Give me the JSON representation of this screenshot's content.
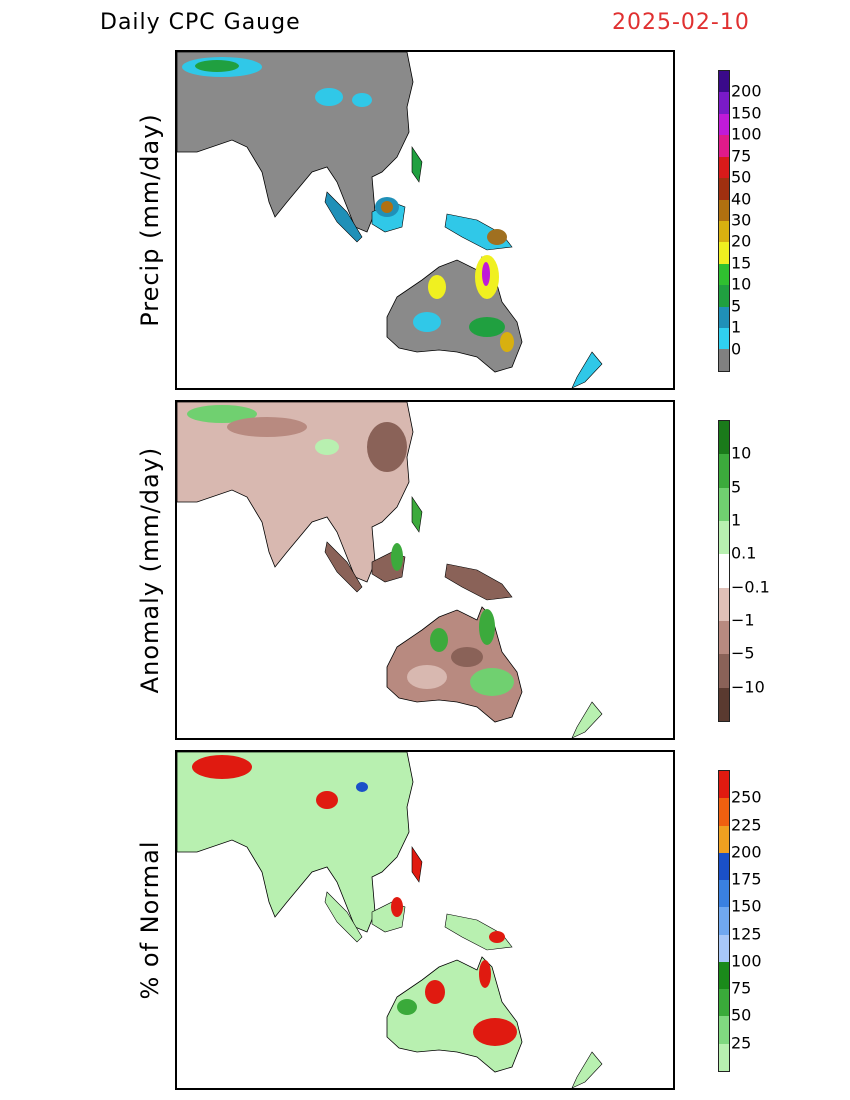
{
  "header": {
    "title": "Daily CPC Gauge",
    "date": "2025-02-10"
  },
  "panels": [
    {
      "id": "precip",
      "ylabel": "Precip (mm/day)",
      "colorbar": {
        "labels": [
          "200",
          "150",
          "100",
          "75",
          "50",
          "40",
          "30",
          "20",
          "15",
          "10",
          "5",
          "1",
          "0"
        ],
        "colors": [
          "#3a0a8a",
          "#7a1ac8",
          "#c01ad8",
          "#e01a8a",
          "#d81a1a",
          "#a03010",
          "#b07010",
          "#d8b010",
          "#f0f020",
          "#30c030",
          "#20a040",
          "#2090b8",
          "#30d0f0",
          "#808080"
        ]
      }
    },
    {
      "id": "anomaly",
      "ylabel": "Anomaly (mm/day)",
      "colorbar": {
        "labels": [
          "10",
          "5",
          "1",
          "0.1",
          "−0.1",
          "−1",
          "−5",
          "−10"
        ],
        "colors": [
          "#1a7a1a",
          "#3caa3c",
          "#70d070",
          "#b8f0b0",
          "#ffffff",
          "#e0c0b8",
          "#b88a80",
          "#8a6258",
          "#5a3a30"
        ]
      }
    },
    {
      "id": "percent",
      "ylabel": "% of Normal",
      "colorbar": {
        "labels": [
          "250",
          "225",
          "200",
          "175",
          "150",
          "125",
          "100",
          "75",
          "50",
          "25"
        ],
        "colors": [
          "#e01a10",
          "#f06010",
          "#f0a020",
          "#1a50c8",
          "#3a80e0",
          "#70a8f0",
          "#a8c8f8",
          "#1a8a1a",
          "#3aaa3a",
          "#80d880",
          "#b8f0b0"
        ]
      }
    }
  ]
}
